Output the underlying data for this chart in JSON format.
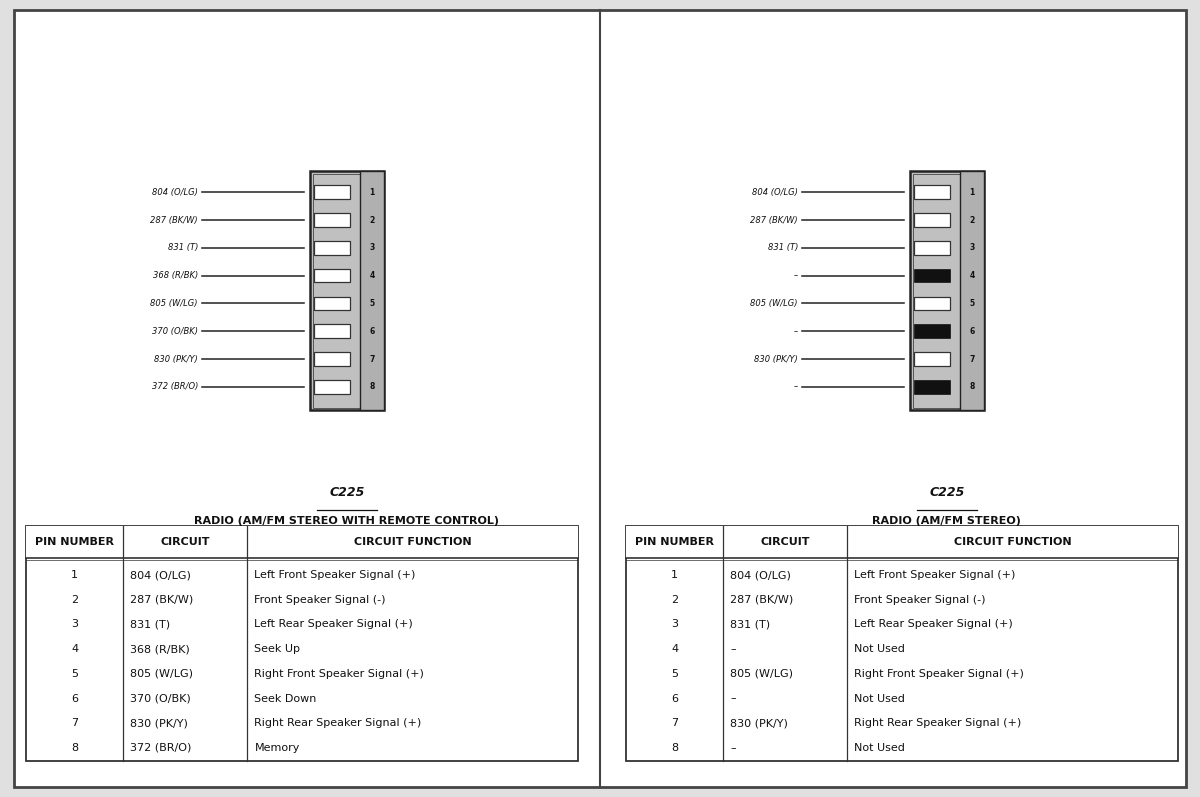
{
  "bg_color": "#e0e0e0",
  "panel_bg": "#ffffff",
  "left_panel": {
    "connector_label": "C225",
    "title": "RADIO (AM/FM STEREO WITH REMOTE CONTROL)",
    "pins": [
      {
        "num": 1,
        "circuit": "804 (O/LG)",
        "function": "Left Front Speaker Signal (+)"
      },
      {
        "num": 2,
        "circuit": "287 (BK/W)",
        "function": "Front Speaker Signal (-)"
      },
      {
        "num": 3,
        "circuit": "831 (T)",
        "function": "Left Rear Speaker Signal (+)"
      },
      {
        "num": 4,
        "circuit": "368 (R/BK)",
        "function": "Seek Up"
      },
      {
        "num": 5,
        "circuit": "805 (W/LG)",
        "function": "Right Front Speaker Signal (+)"
      },
      {
        "num": 6,
        "circuit": "370 (O/BK)",
        "function": "Seek Down"
      },
      {
        "num": 7,
        "circuit": "830 (PK/Y)",
        "function": "Right Rear Speaker Signal (+)"
      },
      {
        "num": 8,
        "circuit": "372 (BR/O)",
        "function": "Memory"
      }
    ],
    "filled_pins": [],
    "table_headers": [
      "PIN NUMBER",
      "CIRCUIT",
      "CIRCUIT FUNCTION"
    ]
  },
  "right_panel": {
    "connector_label": "C225",
    "title": "RADIO (AM/FM STEREO)",
    "pins": [
      {
        "num": 1,
        "circuit": "804 (O/LG)",
        "function": "Left Front Speaker Signal (+)"
      },
      {
        "num": 2,
        "circuit": "287 (BK/W)",
        "function": "Front Speaker Signal (-)"
      },
      {
        "num": 3,
        "circuit": "831 (T)",
        "function": "Left Rear Speaker Signal (+)"
      },
      {
        "num": 4,
        "circuit": "–",
        "function": "Not Used"
      },
      {
        "num": 5,
        "circuit": "805 (W/LG)",
        "function": "Right Front Speaker Signal (+)"
      },
      {
        "num": 6,
        "circuit": "–",
        "function": "Not Used"
      },
      {
        "num": 7,
        "circuit": "830 (PK/Y)",
        "function": "Right Rear Speaker Signal (+)"
      },
      {
        "num": 8,
        "circuit": "–",
        "function": "Not Used"
      }
    ],
    "filled_pins": [
      4,
      6,
      8
    ],
    "table_headers": [
      "PIN NUMBER",
      "CIRCUIT",
      "CIRCUIT FUNCTION"
    ]
  }
}
